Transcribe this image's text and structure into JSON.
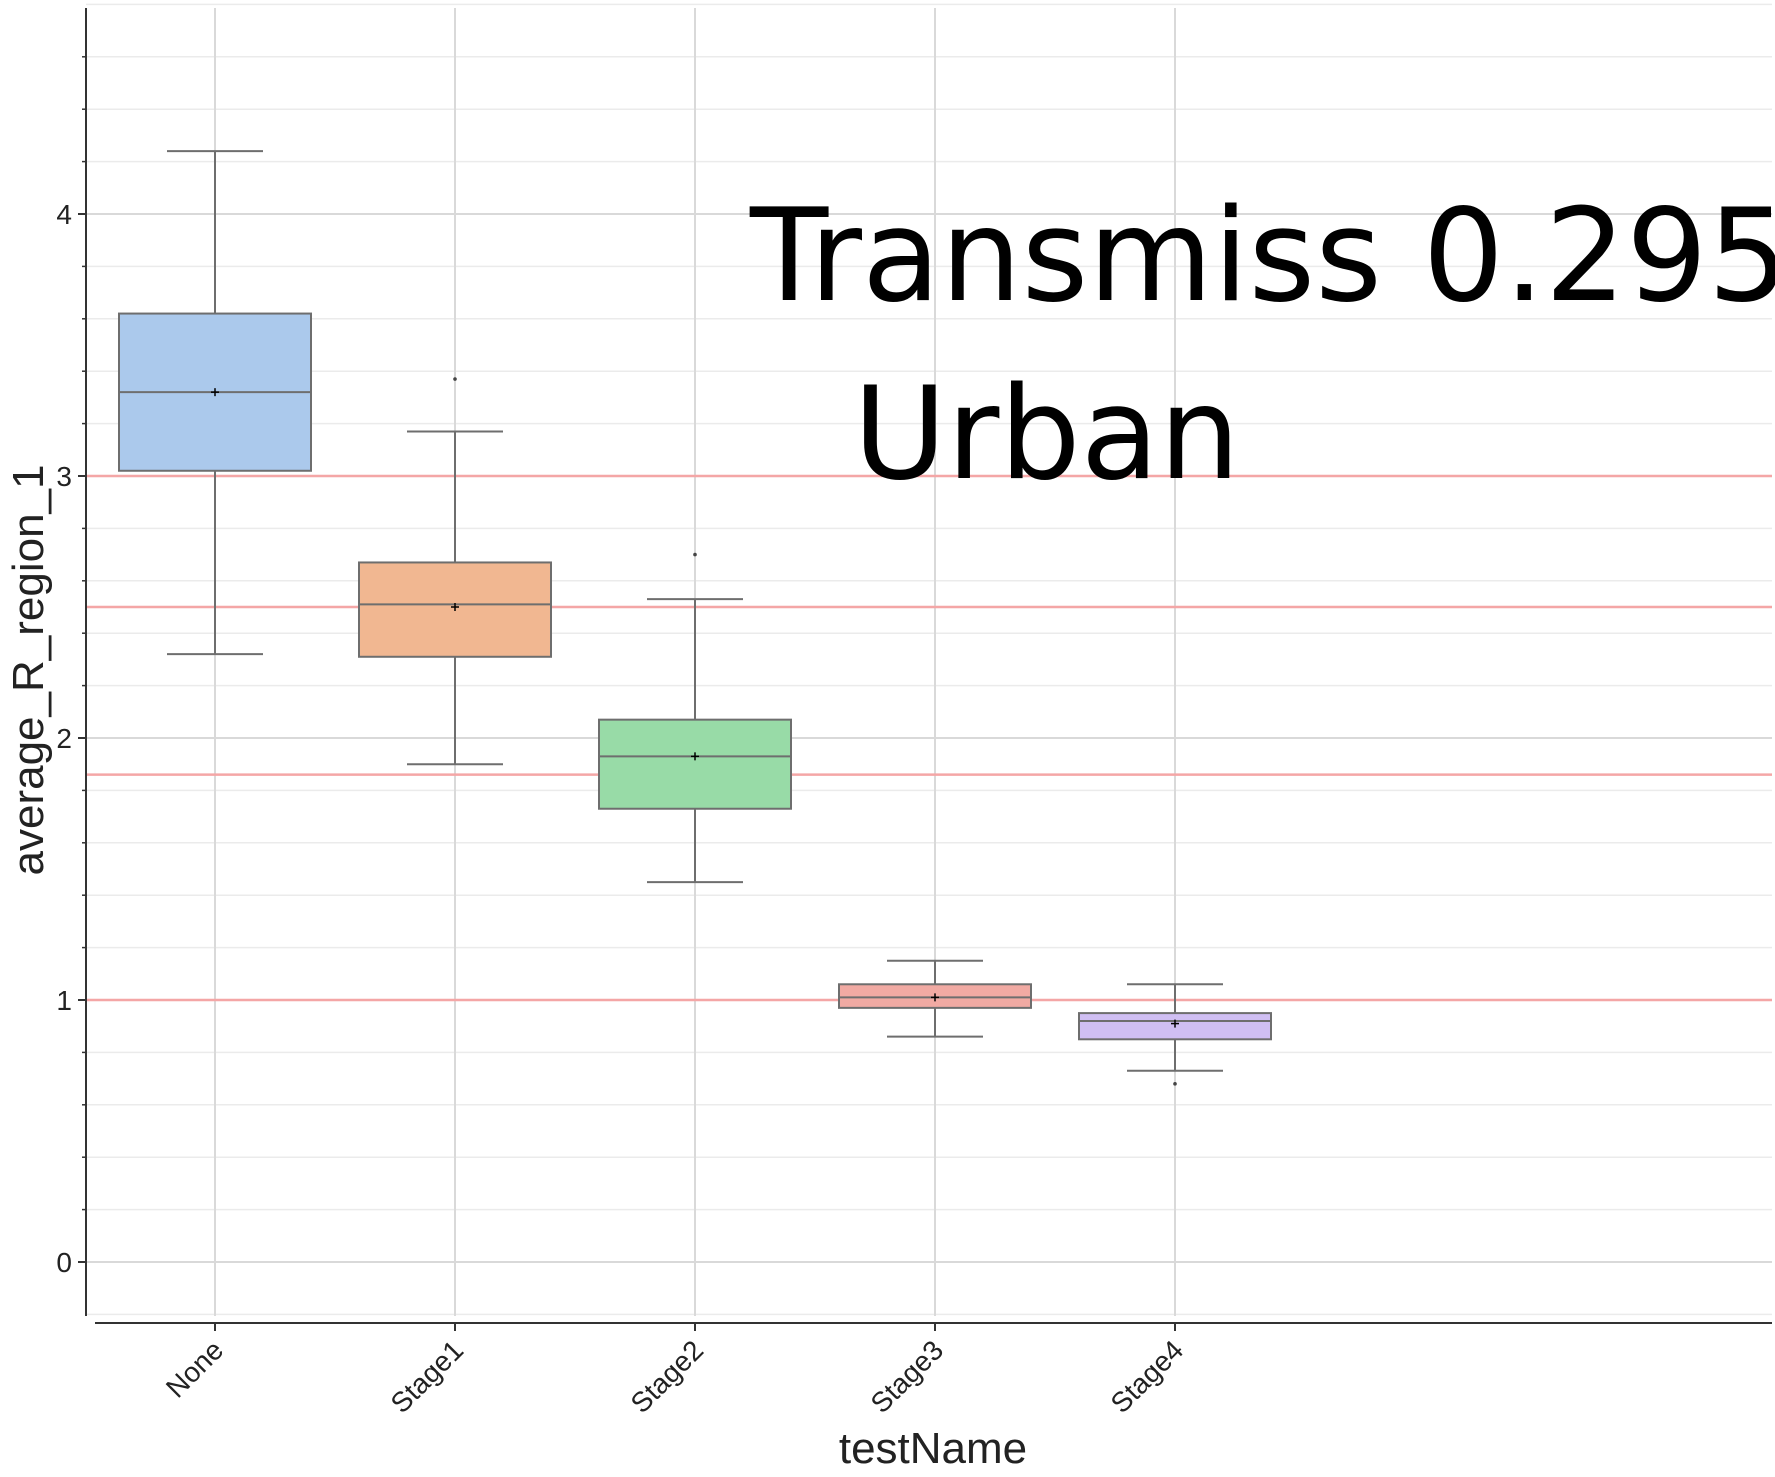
{
  "chart_data": {
    "type": "box",
    "xlabel": "testName",
    "ylabel": "average_R_region_1",
    "ylim": [
      -0.2,
      4.8
    ],
    "yticks": [
      0,
      1,
      2,
      3,
      4
    ],
    "grid": true,
    "categories": [
      "None",
      "Stage1",
      "Stage2",
      "Stage3",
      "Stage4"
    ],
    "boxes": [
      {
        "category": "None",
        "whisker_low": 2.32,
        "q1": 3.02,
        "median": 3.32,
        "q3": 3.62,
        "whisker_high": 4.24,
        "mean": 3.32,
        "outliers": [],
        "color": "#abc9ec"
      },
      {
        "category": "Stage1",
        "whisker_low": 1.9,
        "q1": 2.31,
        "median": 2.51,
        "q3": 2.67,
        "whisker_high": 3.17,
        "mean": 2.5,
        "outliers": [
          3.37
        ],
        "color": "#f1b791"
      },
      {
        "category": "Stage2",
        "whisker_low": 1.45,
        "q1": 1.73,
        "median": 1.93,
        "q3": 2.07,
        "whisker_high": 2.53,
        "mean": 1.93,
        "outliers": [
          2.7
        ],
        "color": "#98dba7"
      },
      {
        "category": "Stage3",
        "whisker_low": 0.86,
        "q1": 0.97,
        "median": 1.01,
        "q3": 1.06,
        "whisker_high": 1.15,
        "mean": 1.01,
        "outliers": [],
        "color": "#f1aaa3"
      },
      {
        "category": "Stage4",
        "whisker_low": 0.73,
        "q1": 0.85,
        "median": 0.92,
        "q3": 0.95,
        "whisker_high": 1.06,
        "mean": 0.91,
        "outliers": [
          0.68
        ],
        "color": "#d0bff3"
      }
    ],
    "reference_lines": [
      3.0,
      2.5,
      1.86,
      1.0
    ],
    "reference_line_color": "#f4a6a6",
    "annotations": [
      "Transmiss 0.295",
      "Urban"
    ]
  }
}
